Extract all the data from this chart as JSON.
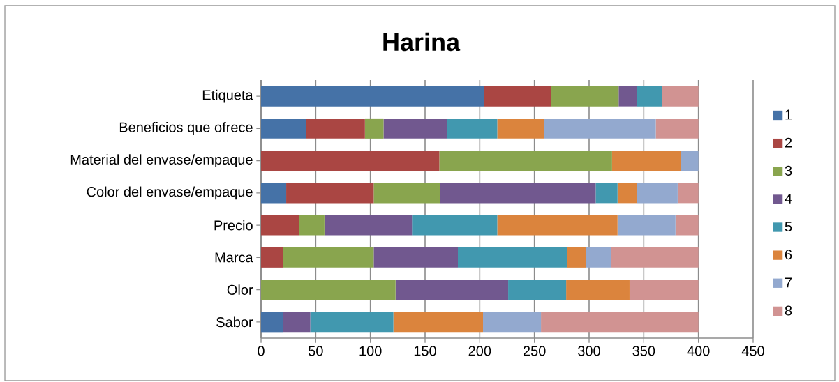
{
  "chart_data": {
    "type": "bar",
    "orientation": "horizontal",
    "stacked": true,
    "title": "Harina",
    "categories": [
      "Etiqueta",
      "Beneficios que ofrece",
      "Material del envase/empaque",
      "Color del envase/empaque",
      "Precio",
      "Marca",
      "Olor",
      "Sabor"
    ],
    "series": [
      {
        "name": "1",
        "color": "#4572a7",
        "values": [
          204,
          41,
          0,
          23,
          0,
          0,
          0,
          20
        ]
      },
      {
        "name": "2",
        "color": "#aa4643",
        "values": [
          61,
          54,
          163,
          80,
          35,
          20,
          0,
          0
        ]
      },
      {
        "name": "3",
        "color": "#89a54e",
        "values": [
          62,
          17,
          158,
          61,
          23,
          83,
          123,
          0
        ]
      },
      {
        "name": "4",
        "color": "#71588f",
        "values": [
          17,
          58,
          0,
          142,
          80,
          77,
          103,
          25
        ]
      },
      {
        "name": "5",
        "color": "#4198af",
        "values": [
          23,
          46,
          0,
          20,
          78,
          100,
          53,
          76
        ]
      },
      {
        "name": "6",
        "color": "#db843d",
        "values": [
          0,
          43,
          63,
          18,
          110,
          17,
          58,
          82
        ]
      },
      {
        "name": "7",
        "color": "#93a9cf",
        "values": [
          0,
          102,
          16,
          37,
          53,
          23,
          0,
          53
        ]
      },
      {
        "name": "8",
        "color": "#d19392",
        "values": [
          33,
          39,
          0,
          19,
          21,
          80,
          63,
          144
        ]
      }
    ],
    "xlim": [
      0,
      450
    ],
    "xticks": [
      0,
      50,
      100,
      150,
      200,
      250,
      300,
      350,
      400,
      450
    ],
    "grid": "x",
    "legend": "right"
  }
}
